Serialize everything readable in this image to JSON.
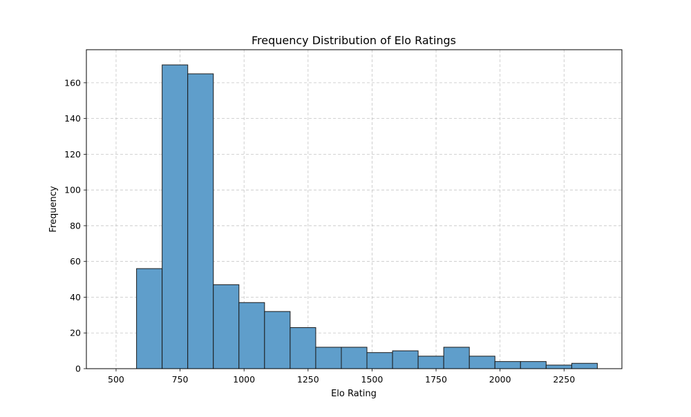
{
  "chart_data": {
    "type": "bar",
    "subtype": "histogram",
    "title": "Frequency Distribution of Elo Ratings",
    "xlabel": "Elo Rating",
    "ylabel": "Frequency",
    "bins": [
      {
        "x0": 480,
        "x1": 580,
        "count": 0
      },
      {
        "x0": 580,
        "x1": 680,
        "count": 56
      },
      {
        "x0": 680,
        "x1": 780,
        "count": 170
      },
      {
        "x0": 780,
        "x1": 880,
        "count": 165
      },
      {
        "x0": 880,
        "x1": 980,
        "count": 47
      },
      {
        "x0": 980,
        "x1": 1080,
        "count": 37
      },
      {
        "x0": 1080,
        "x1": 1180,
        "count": 32
      },
      {
        "x0": 1180,
        "x1": 1280,
        "count": 23
      },
      {
        "x0": 1280,
        "x1": 1380,
        "count": 12
      },
      {
        "x0": 1380,
        "x1": 1480,
        "count": 12
      },
      {
        "x0": 1480,
        "x1": 1580,
        "count": 9
      },
      {
        "x0": 1580,
        "x1": 1680,
        "count": 10
      },
      {
        "x0": 1680,
        "x1": 1780,
        "count": 7
      },
      {
        "x0": 1780,
        "x1": 1880,
        "count": 12
      },
      {
        "x0": 1880,
        "x1": 1980,
        "count": 7
      },
      {
        "x0": 1980,
        "x1": 2080,
        "count": 4
      },
      {
        "x0": 2080,
        "x1": 2180,
        "count": 4
      },
      {
        "x0": 2180,
        "x1": 2280,
        "count": 2
      },
      {
        "x0": 2280,
        "x1": 2380,
        "count": 3
      }
    ],
    "xlim": [
      384,
      2476
    ],
    "ylim": [
      0,
      178.5
    ],
    "xticks": [
      500,
      750,
      1000,
      1250,
      1500,
      1750,
      2000,
      2250
    ],
    "yticks": [
      0,
      20,
      40,
      60,
      80,
      100,
      120,
      140,
      160
    ],
    "grid": true,
    "bar_color": "#5f9ecb",
    "edge_color": "#1a1a1a"
  }
}
